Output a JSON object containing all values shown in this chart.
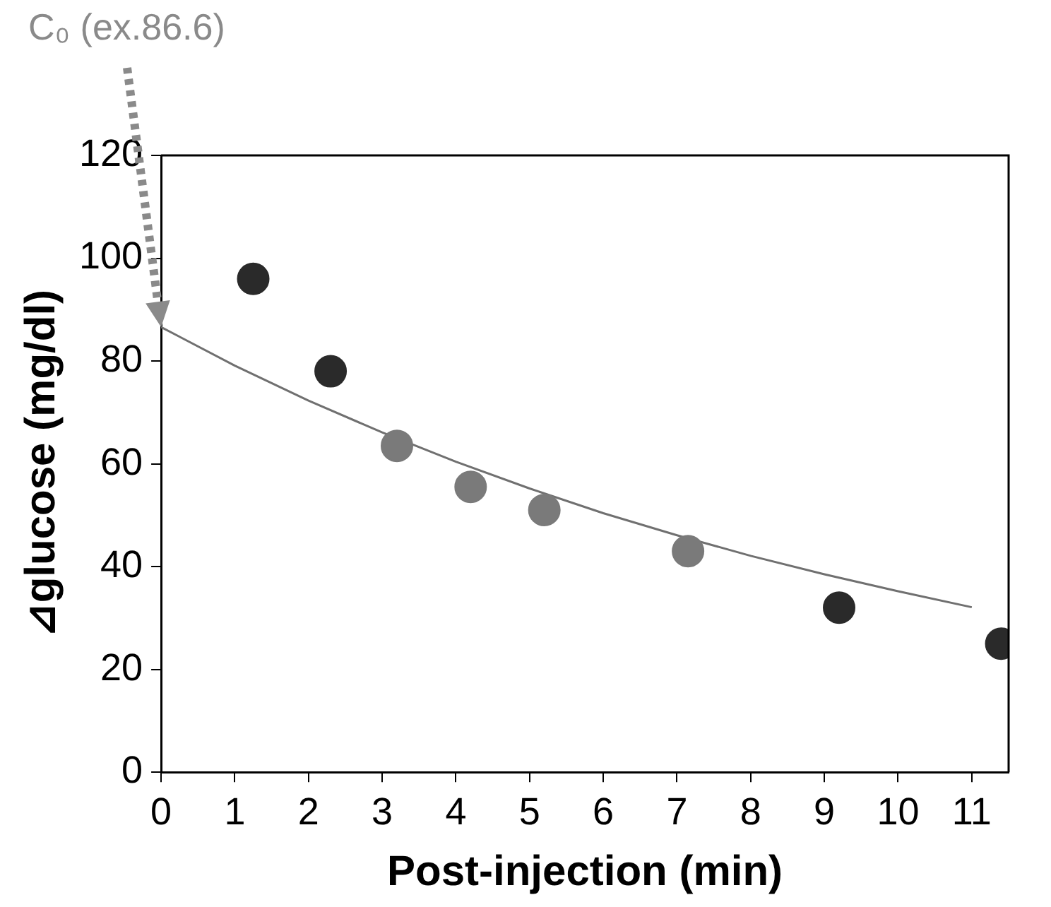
{
  "chart_data": {
    "type": "scatter",
    "xlabel": "Post-injection (min)",
    "ylabel": "⊿glucose (mg/dl)",
    "xlim": [
      0,
      11.5
    ],
    "xticks": [
      0,
      1,
      2,
      3,
      4,
      5,
      6,
      7,
      8,
      9,
      10,
      11
    ],
    "ylim": [
      0,
      120
    ],
    "yticks": [
      0,
      20,
      40,
      60,
      80,
      100,
      120
    ],
    "grid": false,
    "legend": false,
    "series": [
      {
        "marker": "circle",
        "x": [
          1.25,
          2.3,
          3.2,
          4.2,
          5.2,
          7.15,
          9.2,
          11.4
        ],
        "values": [
          96,
          78,
          63.5,
          55.5,
          51,
          43,
          32,
          25
        ],
        "colors": [
          "#2a2a2a",
          "#2a2a2a",
          "#7a7a7a",
          "#7a7a7a",
          "#7a7a7a",
          "#7a7a7a",
          "#2a2a2a",
          "#2a2a2a"
        ]
      },
      {
        "type": "line",
        "x": [
          0,
          1,
          2,
          3,
          4,
          5,
          6,
          7,
          8,
          9,
          10,
          11
        ],
        "values": [
          86.6,
          79.1,
          72.3,
          66.1,
          60.4,
          55.2,
          50.4,
          46.1,
          42.1,
          38.5,
          35.2,
          32.1
        ],
        "color": "#707070",
        "line_style": "solid"
      }
    ],
    "annotations": [
      "C₀ (ex.86.6)"
    ]
  }
}
